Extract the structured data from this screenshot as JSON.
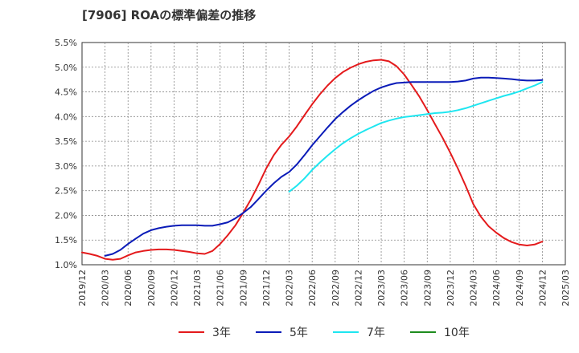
{
  "chart_data": {
    "type": "line",
    "title": "[7906]  ROAの標準偏差の推移",
    "xlabel": "",
    "ylabel": "",
    "ylim": [
      1.0,
      5.5
    ],
    "yticks": [
      "1.0%",
      "1.5%",
      "2.0%",
      "2.5%",
      "3.0%",
      "3.5%",
      "4.0%",
      "4.5%",
      "5.0%",
      "5.5%"
    ],
    "xticks": [
      "2019/12",
      "2020/03",
      "2020/06",
      "2020/09",
      "2020/12",
      "2021/03",
      "2021/06",
      "2021/09",
      "2021/12",
      "2022/03",
      "2022/06",
      "2022/09",
      "2022/12",
      "2023/03",
      "2023/06",
      "2023/09",
      "2023/12",
      "2024/03",
      "2024/06",
      "2024/09",
      "2024/12",
      "2025/03"
    ],
    "grid": true,
    "legend_position": "bottom",
    "series": [
      {
        "name": "3年",
        "color": "#e41a1c",
        "x": [
          "2019/12",
          "2020/01",
          "2020/02",
          "2020/03",
          "2020/04",
          "2020/05",
          "2020/06",
          "2020/07",
          "2020/08",
          "2020/09",
          "2020/10",
          "2020/11",
          "2020/12",
          "2021/01",
          "2021/02",
          "2021/03",
          "2021/04",
          "2021/05",
          "2021/06",
          "2021/07",
          "2021/08",
          "2021/09",
          "2021/10",
          "2021/11",
          "2021/12",
          "2022/01",
          "2022/02",
          "2022/03",
          "2022/04",
          "2022/05",
          "2022/06",
          "2022/07",
          "2022/08",
          "2022/09",
          "2022/10",
          "2022/11",
          "2022/12",
          "2023/01",
          "2023/02",
          "2023/03",
          "2023/04",
          "2023/05",
          "2023/06",
          "2023/07",
          "2023/08",
          "2023/09",
          "2023/10",
          "2023/11",
          "2023/12",
          "2024/01",
          "2024/02",
          "2024/03",
          "2024/04",
          "2024/05",
          "2024/06",
          "2024/07",
          "2024/08",
          "2024/09",
          "2024/10",
          "2024/11",
          "2024/12"
        ],
        "values": [
          1.25,
          1.22,
          1.18,
          1.12,
          1.1,
          1.12,
          1.19,
          1.25,
          1.28,
          1.3,
          1.31,
          1.31,
          1.3,
          1.28,
          1.26,
          1.23,
          1.22,
          1.28,
          1.42,
          1.6,
          1.8,
          2.05,
          2.32,
          2.62,
          2.95,
          3.22,
          3.43,
          3.6,
          3.8,
          4.03,
          4.25,
          4.45,
          4.63,
          4.78,
          4.9,
          4.99,
          5.06,
          5.11,
          5.14,
          5.15,
          5.12,
          5.02,
          4.85,
          4.63,
          4.4,
          4.13,
          3.85,
          3.57,
          3.27,
          2.95,
          2.6,
          2.23,
          1.97,
          1.78,
          1.65,
          1.54,
          1.46,
          1.41,
          1.39,
          1.41,
          1.47
        ]
      },
      {
        "name": "5年",
        "color": "#0a1bb8",
        "x": [
          "2020/03",
          "2020/04",
          "2020/05",
          "2020/06",
          "2020/07",
          "2020/08",
          "2020/09",
          "2020/10",
          "2020/11",
          "2020/12",
          "2021/01",
          "2021/02",
          "2021/03",
          "2021/04",
          "2021/05",
          "2021/06",
          "2021/07",
          "2021/08",
          "2021/09",
          "2021/10",
          "2021/11",
          "2021/12",
          "2022/01",
          "2022/02",
          "2022/03",
          "2022/04",
          "2022/05",
          "2022/06",
          "2022/07",
          "2022/08",
          "2022/09",
          "2022/10",
          "2022/11",
          "2022/12",
          "2023/01",
          "2023/02",
          "2023/03",
          "2023/04",
          "2023/05",
          "2023/06",
          "2023/07",
          "2023/08",
          "2023/09",
          "2023/10",
          "2023/11",
          "2023/12",
          "2024/01",
          "2024/02",
          "2024/03",
          "2024/04",
          "2024/05",
          "2024/06",
          "2024/07",
          "2024/08",
          "2024/09",
          "2024/10",
          "2024/11",
          "2024/12"
        ],
        "values": [
          1.18,
          1.22,
          1.3,
          1.42,
          1.53,
          1.63,
          1.7,
          1.74,
          1.77,
          1.79,
          1.8,
          1.8,
          1.8,
          1.79,
          1.79,
          1.82,
          1.86,
          1.94,
          2.05,
          2.17,
          2.33,
          2.5,
          2.65,
          2.78,
          2.88,
          3.03,
          3.22,
          3.42,
          3.6,
          3.78,
          3.95,
          4.09,
          4.22,
          4.33,
          4.43,
          4.52,
          4.59,
          4.64,
          4.68,
          4.69,
          4.7,
          4.7,
          4.7,
          4.7,
          4.7,
          4.7,
          4.71,
          4.73,
          4.77,
          4.79,
          4.79,
          4.78,
          4.77,
          4.76,
          4.74,
          4.73,
          4.73,
          4.74
        ]
      },
      {
        "name": "7年",
        "color": "#1ee6f0",
        "x": [
          "2022/03",
          "2022/04",
          "2022/05",
          "2022/06",
          "2022/07",
          "2022/08",
          "2022/09",
          "2022/10",
          "2022/11",
          "2022/12",
          "2023/01",
          "2023/02",
          "2023/03",
          "2023/04",
          "2023/05",
          "2023/06",
          "2023/07",
          "2023/08",
          "2023/09",
          "2023/10",
          "2023/11",
          "2023/12",
          "2024/01",
          "2024/02",
          "2024/03",
          "2024/04",
          "2024/05",
          "2024/06",
          "2024/07",
          "2024/08",
          "2024/09",
          "2024/10",
          "2024/11",
          "2024/12"
        ],
        "values": [
          2.48,
          2.6,
          2.75,
          2.92,
          3.07,
          3.21,
          3.34,
          3.46,
          3.56,
          3.65,
          3.73,
          3.8,
          3.87,
          3.92,
          3.96,
          3.99,
          4.01,
          4.03,
          4.05,
          4.07,
          4.08,
          4.1,
          4.13,
          4.17,
          4.22,
          4.27,
          4.32,
          4.37,
          4.42,
          4.46,
          4.51,
          4.57,
          4.63,
          4.7
        ]
      },
      {
        "name": "10年",
        "color": "#1e8c1e",
        "x": [],
        "values": []
      }
    ]
  }
}
